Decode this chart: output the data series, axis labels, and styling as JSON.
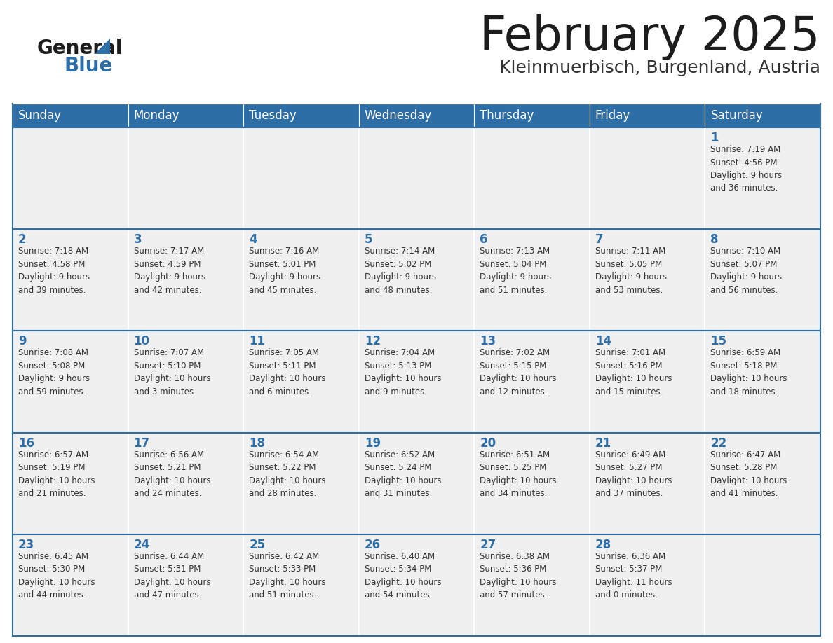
{
  "title": "February 2025",
  "subtitle": "Kleinmuerbisch, Burgenland, Austria",
  "header_color": "#2E6EA6",
  "header_text_color": "#FFFFFF",
  "cell_bg_color": "#F0F0F0",
  "cell_border_color": "#2E6EA6",
  "day_number_color": "#2E6EA6",
  "text_color": "#333333",
  "logo_color": "#2E6EA6",
  "days_of_week": [
    "Sunday",
    "Monday",
    "Tuesday",
    "Wednesday",
    "Thursday",
    "Friday",
    "Saturday"
  ],
  "weeks": [
    [
      {
        "day": "",
        "info": ""
      },
      {
        "day": "",
        "info": ""
      },
      {
        "day": "",
        "info": ""
      },
      {
        "day": "",
        "info": ""
      },
      {
        "day": "",
        "info": ""
      },
      {
        "day": "",
        "info": ""
      },
      {
        "day": "1",
        "info": "Sunrise: 7:19 AM\nSunset: 4:56 PM\nDaylight: 9 hours\nand 36 minutes."
      }
    ],
    [
      {
        "day": "2",
        "info": "Sunrise: 7:18 AM\nSunset: 4:58 PM\nDaylight: 9 hours\nand 39 minutes."
      },
      {
        "day": "3",
        "info": "Sunrise: 7:17 AM\nSunset: 4:59 PM\nDaylight: 9 hours\nand 42 minutes."
      },
      {
        "day": "4",
        "info": "Sunrise: 7:16 AM\nSunset: 5:01 PM\nDaylight: 9 hours\nand 45 minutes."
      },
      {
        "day": "5",
        "info": "Sunrise: 7:14 AM\nSunset: 5:02 PM\nDaylight: 9 hours\nand 48 minutes."
      },
      {
        "day": "6",
        "info": "Sunrise: 7:13 AM\nSunset: 5:04 PM\nDaylight: 9 hours\nand 51 minutes."
      },
      {
        "day": "7",
        "info": "Sunrise: 7:11 AM\nSunset: 5:05 PM\nDaylight: 9 hours\nand 53 minutes."
      },
      {
        "day": "8",
        "info": "Sunrise: 7:10 AM\nSunset: 5:07 PM\nDaylight: 9 hours\nand 56 minutes."
      }
    ],
    [
      {
        "day": "9",
        "info": "Sunrise: 7:08 AM\nSunset: 5:08 PM\nDaylight: 9 hours\nand 59 minutes."
      },
      {
        "day": "10",
        "info": "Sunrise: 7:07 AM\nSunset: 5:10 PM\nDaylight: 10 hours\nand 3 minutes."
      },
      {
        "day": "11",
        "info": "Sunrise: 7:05 AM\nSunset: 5:11 PM\nDaylight: 10 hours\nand 6 minutes."
      },
      {
        "day": "12",
        "info": "Sunrise: 7:04 AM\nSunset: 5:13 PM\nDaylight: 10 hours\nand 9 minutes."
      },
      {
        "day": "13",
        "info": "Sunrise: 7:02 AM\nSunset: 5:15 PM\nDaylight: 10 hours\nand 12 minutes."
      },
      {
        "day": "14",
        "info": "Sunrise: 7:01 AM\nSunset: 5:16 PM\nDaylight: 10 hours\nand 15 minutes."
      },
      {
        "day": "15",
        "info": "Sunrise: 6:59 AM\nSunset: 5:18 PM\nDaylight: 10 hours\nand 18 minutes."
      }
    ],
    [
      {
        "day": "16",
        "info": "Sunrise: 6:57 AM\nSunset: 5:19 PM\nDaylight: 10 hours\nand 21 minutes."
      },
      {
        "day": "17",
        "info": "Sunrise: 6:56 AM\nSunset: 5:21 PM\nDaylight: 10 hours\nand 24 minutes."
      },
      {
        "day": "18",
        "info": "Sunrise: 6:54 AM\nSunset: 5:22 PM\nDaylight: 10 hours\nand 28 minutes."
      },
      {
        "day": "19",
        "info": "Sunrise: 6:52 AM\nSunset: 5:24 PM\nDaylight: 10 hours\nand 31 minutes."
      },
      {
        "day": "20",
        "info": "Sunrise: 6:51 AM\nSunset: 5:25 PM\nDaylight: 10 hours\nand 34 minutes."
      },
      {
        "day": "21",
        "info": "Sunrise: 6:49 AM\nSunset: 5:27 PM\nDaylight: 10 hours\nand 37 minutes."
      },
      {
        "day": "22",
        "info": "Sunrise: 6:47 AM\nSunset: 5:28 PM\nDaylight: 10 hours\nand 41 minutes."
      }
    ],
    [
      {
        "day": "23",
        "info": "Sunrise: 6:45 AM\nSunset: 5:30 PM\nDaylight: 10 hours\nand 44 minutes."
      },
      {
        "day": "24",
        "info": "Sunrise: 6:44 AM\nSunset: 5:31 PM\nDaylight: 10 hours\nand 47 minutes."
      },
      {
        "day": "25",
        "info": "Sunrise: 6:42 AM\nSunset: 5:33 PM\nDaylight: 10 hours\nand 51 minutes."
      },
      {
        "day": "26",
        "info": "Sunrise: 6:40 AM\nSunset: 5:34 PM\nDaylight: 10 hours\nand 54 minutes."
      },
      {
        "day": "27",
        "info": "Sunrise: 6:38 AM\nSunset: 5:36 PM\nDaylight: 10 hours\nand 57 minutes."
      },
      {
        "day": "28",
        "info": "Sunrise: 6:36 AM\nSunset: 5:37 PM\nDaylight: 11 hours\nand 0 minutes."
      },
      {
        "day": "",
        "info": ""
      }
    ]
  ]
}
